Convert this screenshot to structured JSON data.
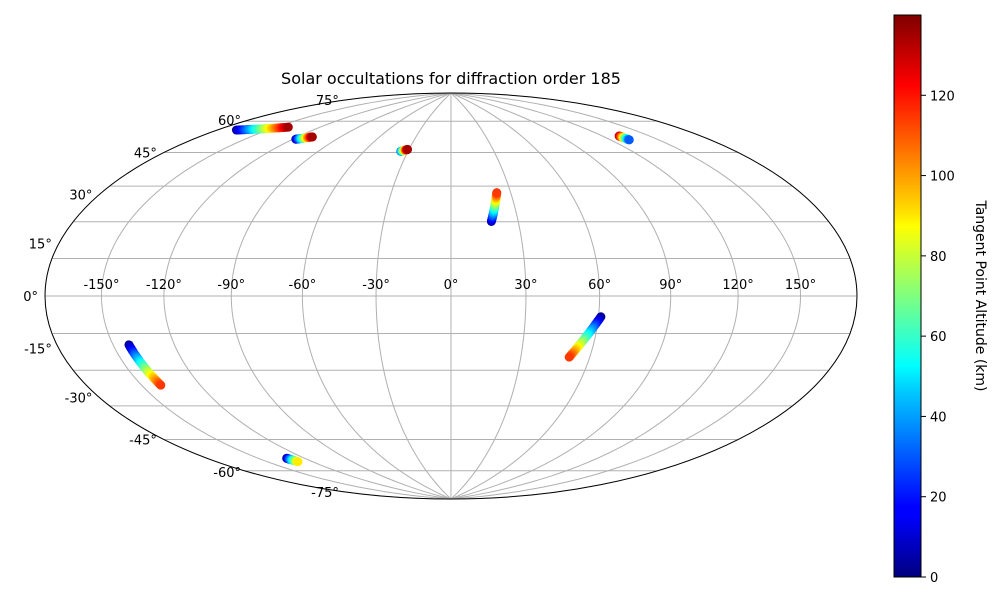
{
  "chart_data": {
    "type": "scatter",
    "projection": "hammer",
    "title": "Solar occultations for diffraction order 185",
    "lon_ticks": [
      "-150°",
      "-120°",
      "-90°",
      "-60°",
      "-30°",
      "0°",
      "30°",
      "60°",
      "90°",
      "120°",
      "150°"
    ],
    "lon_tick_values": [
      -150,
      -120,
      -90,
      -60,
      -30,
      0,
      30,
      60,
      90,
      120,
      150
    ],
    "lat_ticks": [
      "-75°",
      "-60°",
      "-45°",
      "-30°",
      "-15°",
      "0°",
      "15°",
      "30°",
      "45°",
      "60°",
      "75°"
    ],
    "lat_tick_values": [
      -75,
      -60,
      -45,
      -30,
      -15,
      0,
      15,
      30,
      45,
      60,
      75
    ],
    "grid": true,
    "colormap": "jet",
    "colorbar": {
      "label": "Tangent Point Altitude (km)",
      "range": [
        0,
        140
      ],
      "ticks": [
        0,
        20,
        40,
        60,
        80,
        100,
        120
      ],
      "tick_labels": [
        "0",
        "20",
        "40",
        "60",
        "80",
        "100",
        "120"
      ]
    },
    "tracks": [
      {
        "lon_start": -169,
        "lat_start": 57,
        "alt_start": 5,
        "lon_end": -142,
        "lat_end": 63,
        "alt_end": 135
      },
      {
        "lon_start": -118,
        "lat_start": 60,
        "alt_start": 5,
        "lon_end": -110,
        "lat_end": 62,
        "alt_end": 135
      },
      {
        "lon_start": -35,
        "lat_start": 60,
        "alt_start": 30,
        "lon_end": -31,
        "lat_end": 61,
        "alt_end": 135
      },
      {
        "lon_start": 18,
        "lat_start": 30,
        "alt_start": 5,
        "lon_end": 23,
        "lat_end": 42,
        "alt_end": 115
      },
      {
        "lon_start": 61,
        "lat_start": -8,
        "alt_start": 2,
        "lon_end": 51,
        "lat_end": -24,
        "alt_end": 115
      },
      {
        "lon_start": -142,
        "lat_start": -16,
        "alt_start": 3,
        "lon_end": -140,
        "lat_end": -30,
        "alt_end": 115
      },
      {
        "lon_start": -132,
        "lat_start": -61,
        "alt_start": 5,
        "lon_end": -130,
        "lat_end": -63,
        "alt_end": 90
      },
      {
        "lon_start": 131,
        "lat_start": 60,
        "alt_start": 135,
        "lon_end": 132,
        "lat_end": 58,
        "alt_end": 30
      }
    ]
  }
}
